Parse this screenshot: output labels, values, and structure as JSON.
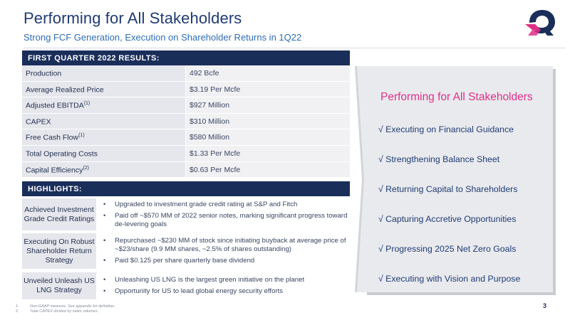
{
  "header": {
    "title": "Performing for All Stakeholders",
    "subtitle": "Strong FCF Generation, Execution on Shareholder Returns in 1Q22"
  },
  "results": {
    "heading": "FIRST QUARTER 2022 RESULTS:",
    "rows": [
      {
        "label": "Production",
        "sup": "",
        "value": "492 Bcfe"
      },
      {
        "label": "Average Realized Price",
        "sup": "",
        "value": "$3.19 Per Mcfe"
      },
      {
        "label": "Adjusted EBITDA",
        "sup": "(1)",
        "value": "$927 Million"
      },
      {
        "label": "CAPEX",
        "sup": "",
        "value": "$310 Million"
      },
      {
        "label": "Free Cash Flow",
        "sup": "(1)",
        "value": "$580 Million"
      },
      {
        "label": "Total Operating Costs",
        "sup": "",
        "value": "$1.33 Per Mcfe"
      },
      {
        "label": "Capital Efficiency",
        "sup": "(2)",
        "value": "$0.63 Per Mcfe"
      }
    ]
  },
  "highlights": {
    "heading": "HIGHLIGHTS:",
    "groups": [
      {
        "label": "Achieved Investment Grade Credit Ratings",
        "bullets": [
          "Upgraded to investment grade credit rating at S&P and Fitch",
          "Paid off ~$570 MM of 2022 senior notes, marking significant progress toward de-levering goals"
        ]
      },
      {
        "label": "Executing On Robust Shareholder Return Strategy",
        "bullets": [
          "Repurchased ~$230 MM of stock since initiating buyback at average price of ~$23/share (9.9 MM shares, ~2.5% of shares outstanding)",
          "Paid $0.125 per share quarterly base dividend"
        ]
      },
      {
        "label": "Unveiled Unleash US LNG Strategy",
        "bullets": [
          "Unleashing US LNG is the largest green initiative on the planet",
          "Opportunity for US to lead global energy security efforts"
        ]
      }
    ]
  },
  "panel": {
    "title": "Performing for All Stakeholders",
    "items": [
      "√ Executing on Financial Guidance",
      "√ Strengthening Balance Sheet",
      "√ Returning Capital to Shareholders",
      "√ Capturing Accretive Opportunities",
      "√ Progressing 2025 Net Zero Goals",
      "√ Executing with Vision and Purpose"
    ]
  },
  "footnotes": [
    {
      "num": "1.",
      "text": "Non-GAAP measure. See appendix for definition."
    },
    {
      "num": "2.",
      "text": "Total CAPEX divided by sales volumes."
    }
  ],
  "page_number": "3",
  "colors": {
    "navy": "#1a2e5a",
    "title_blue": "#1f3b73",
    "subtitle_blue": "#2f6db5",
    "accent_pink": "#e02f86",
    "row_gray": "#e6e7ec",
    "panel_gray": "#e9eaee"
  },
  "icons": {
    "logo": "company-logo-q-icon",
    "chevron": "chevron-right-icon"
  }
}
